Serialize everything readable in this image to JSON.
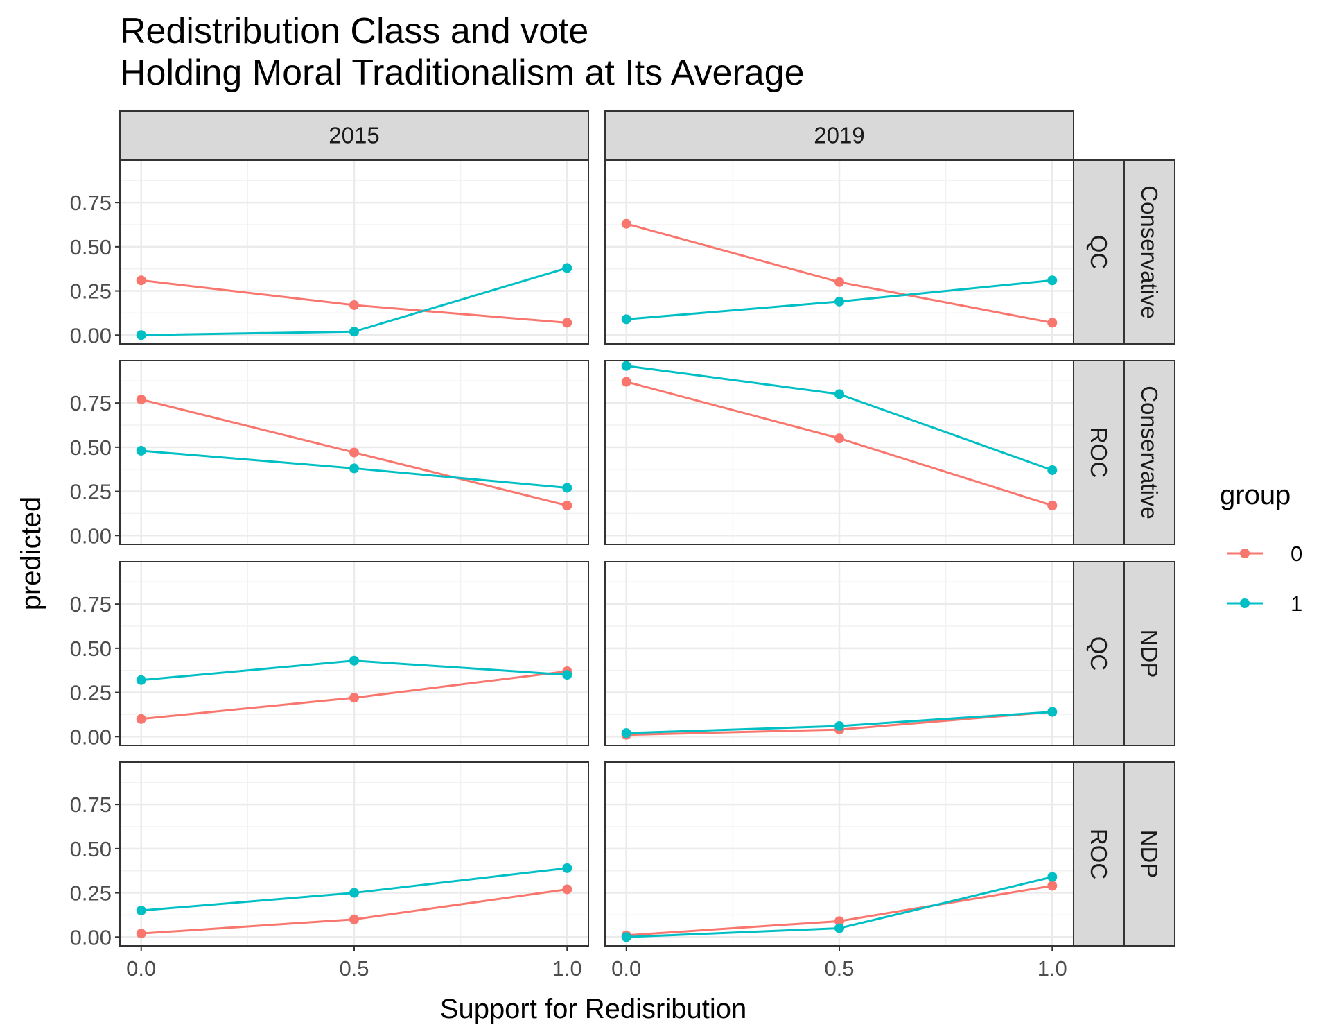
{
  "chart_data": {
    "type": "line",
    "title": "Redistribution Class and vote",
    "subtitle": "Holding Moral Traditionalism at Its Average",
    "xlabel": "Support for Redisribution",
    "ylabel": "predicted",
    "x": [
      0.0,
      0.5,
      1.0
    ],
    "x_tick_labels": [
      "0.0",
      "0.5",
      "1.0"
    ],
    "y_tick_labels": [
      "0.00",
      "0.25",
      "0.50",
      "0.75"
    ],
    "ylim": [
      -0.05,
      0.99
    ],
    "grid": true,
    "legend": {
      "title": "group",
      "placement": "right",
      "entries": [
        {
          "label": "0",
          "color": "#F8766D"
        },
        {
          "label": "1",
          "color": "#00BFC4"
        }
      ]
    },
    "columns": [
      "2015",
      "2019"
    ],
    "rows": [
      {
        "region": "QC",
        "party": "Conservative"
      },
      {
        "region": "ROC",
        "party": "Conservative"
      },
      {
        "region": "QC",
        "party": "NDP"
      },
      {
        "region": "ROC",
        "party": "NDP"
      }
    ],
    "panels": [
      {
        "row": 0,
        "col": 0,
        "series": [
          {
            "name": "0",
            "values": [
              0.31,
              0.17,
              0.07
            ]
          },
          {
            "name": "1",
            "values": [
              0.0,
              0.02,
              0.38
            ]
          }
        ]
      },
      {
        "row": 0,
        "col": 1,
        "series": [
          {
            "name": "0",
            "values": [
              0.63,
              0.3,
              0.07
            ]
          },
          {
            "name": "1",
            "values": [
              0.09,
              0.19,
              0.31
            ]
          }
        ]
      },
      {
        "row": 1,
        "col": 0,
        "series": [
          {
            "name": "0",
            "values": [
              0.77,
              0.47,
              0.17
            ]
          },
          {
            "name": "1",
            "values": [
              0.48,
              0.38,
              0.27
            ]
          }
        ]
      },
      {
        "row": 1,
        "col": 1,
        "series": [
          {
            "name": "0",
            "values": [
              0.87,
              0.55,
              0.17
            ]
          },
          {
            "name": "1",
            "values": [
              0.96,
              0.8,
              0.37
            ]
          }
        ]
      },
      {
        "row": 2,
        "col": 0,
        "series": [
          {
            "name": "0",
            "values": [
              0.1,
              0.22,
              0.37
            ]
          },
          {
            "name": "1",
            "values": [
              0.32,
              0.43,
              0.35
            ]
          }
        ]
      },
      {
        "row": 2,
        "col": 1,
        "series": [
          {
            "name": "0",
            "values": [
              0.01,
              0.04,
              0.14
            ]
          },
          {
            "name": "1",
            "values": [
              0.02,
              0.06,
              0.14
            ]
          }
        ]
      },
      {
        "row": 3,
        "col": 0,
        "series": [
          {
            "name": "0",
            "values": [
              0.02,
              0.1,
              0.27
            ]
          },
          {
            "name": "1",
            "values": [
              0.15,
              0.25,
              0.39
            ]
          }
        ]
      },
      {
        "row": 3,
        "col": 1,
        "series": [
          {
            "name": "0",
            "values": [
              0.01,
              0.09,
              0.29
            ]
          },
          {
            "name": "1",
            "values": [
              0.0,
              0.05,
              0.34
            ]
          }
        ]
      }
    ]
  }
}
